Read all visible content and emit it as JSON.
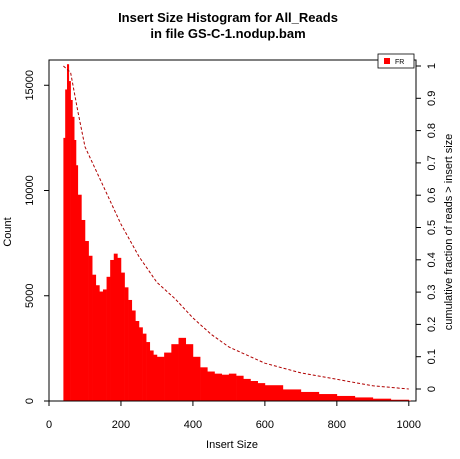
{
  "chart_data": {
    "type": "bar",
    "title": "Insert Size Histogram for All_Reads",
    "subtitle": "in file GS-C-1.nodup.bam",
    "xlabel": "Insert Size",
    "ylabel": "Count",
    "y2label": "cumulative fraction of reads > insert size",
    "xlim": [
      0,
      1020
    ],
    "ylim": [
      0,
      16200
    ],
    "y2lim": [
      0,
      1
    ],
    "xticks": [
      "200",
      "400",
      "600",
      "800",
      "1000"
    ],
    "xtick_values": [
      0,
      200,
      400,
      600,
      800,
      1000
    ],
    "xtick_labels": [
      "0",
      "200",
      "400",
      "600",
      "800",
      "1000"
    ],
    "yticks": [
      0,
      5000,
      10000,
      15000
    ],
    "ytick_labels": [
      "0",
      "5000",
      "10000",
      "15000"
    ],
    "y2ticks": [
      0,
      0.1,
      0.2,
      0.3,
      0.4,
      0.5,
      0.6,
      0.7,
      0.8,
      0.9,
      1
    ],
    "y2tick_labels": [
      "0",
      "0.1",
      "0.2",
      "0.3",
      "0.4",
      "0.5",
      "0.6",
      "0.7",
      "0.8",
      "0.9",
      "1"
    ],
    "grid": false,
    "legend_position": "top-right",
    "bar_color": "#ff0000",
    "cumulative_color": "#b00000",
    "series": [
      {
        "name": "FR",
        "kind": "histogram",
        "x": [
          40,
          45,
          50,
          55,
          60,
          65,
          70,
          75,
          80,
          90,
          100,
          110,
          120,
          130,
          140,
          150,
          160,
          170,
          180,
          190,
          200,
          210,
          220,
          230,
          240,
          250,
          260,
          270,
          280,
          290,
          300,
          320,
          340,
          360,
          380,
          400,
          420,
          440,
          460,
          480,
          500,
          520,
          540,
          560,
          580,
          600,
          650,
          700,
          750,
          800,
          850,
          900,
          950,
          1000
        ],
        "values": [
          12500,
          14800,
          16000,
          15200,
          14300,
          13500,
          12400,
          11200,
          9800,
          8600,
          7600,
          6900,
          6000,
          5500,
          5200,
          5300,
          5900,
          6700,
          7000,
          6800,
          6100,
          5400,
          4800,
          4300,
          3800,
          3500,
          3200,
          2800,
          2400,
          2200,
          2100,
          2300,
          2700,
          3000,
          2700,
          2100,
          1600,
          1400,
          1300,
          1250,
          1300,
          1200,
          1050,
          950,
          850,
          750,
          550,
          430,
          330,
          240,
          170,
          110,
          60,
          20
        ]
      },
      {
        "name": "cumulative",
        "kind": "line",
        "x": [
          40,
          60,
          80,
          100,
          150,
          200,
          250,
          300,
          350,
          400,
          450,
          500,
          600,
          700,
          800,
          900,
          1000
        ],
        "values": [
          1.0,
          0.98,
          0.86,
          0.75,
          0.63,
          0.51,
          0.41,
          0.33,
          0.28,
          0.22,
          0.17,
          0.13,
          0.08,
          0.05,
          0.03,
          0.01,
          0.0
        ]
      }
    ]
  }
}
